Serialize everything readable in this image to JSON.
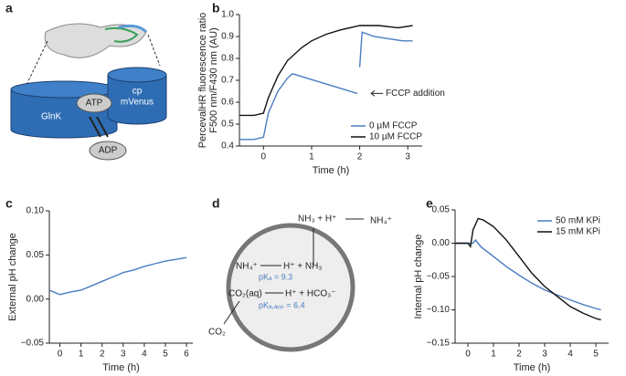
{
  "panel_labels": [
    "a",
    "b",
    "c",
    "d",
    "e"
  ],
  "diagram_a": {
    "glnk": "GlnK",
    "atp": "ATP",
    "cp": "cp",
    "mvenus": "mVenus",
    "adp": "ADP"
  },
  "diagram_d": {
    "top_left": "NH₃ + H⁺",
    "top_right": "NH₄⁺",
    "nh4": "NH₄⁺",
    "eq1": "H⁺ + NH₃",
    "pka1": "pKₐ = 9.3",
    "co2aq": "CO₂(aq)",
    "eq2": "H⁺ + HCO₃⁻",
    "pka2": "pKₐ,ₐₚₚ = 6.4",
    "co2": "CO₂"
  },
  "chart_data": [
    {
      "type": "line",
      "xlabel": "Time (h)",
      "ylabel": [
        "PercevalHR fluorescence ratio",
        "F500 nm/F430 nm (AU)"
      ],
      "annotation": "FCCP addition",
      "legend": "lower right",
      "xlim": [
        -0.5,
        3.3
      ],
      "xticks": [
        0,
        1,
        2,
        3
      ],
      "ylim": [
        0.4,
        1.0
      ],
      "yticks": [
        0.4,
        0.5,
        0.6,
        0.7,
        0.8,
        0.9,
        {
          "value": 1,
          "label": "1.0"
        }
      ],
      "series": [
        {
          "name": "0 µM FCCP",
          "color": "#4a7cc0",
          "x": [
            -0.5,
            -0.2,
            0,
            0.1,
            0.3,
            0.5,
            0.6,
            0.9,
            1.2,
            1.5,
            1.8,
            1.95,
            2.0,
            2.0,
            2.05,
            2.3,
            2.6,
            2.9,
            3.1
          ],
          "values": [
            0.43,
            0.43,
            0.44,
            0.55,
            0.65,
            0.71,
            0.73,
            0.71,
            0.69,
            0.67,
            0.65,
            0.64,
            null,
            0.76,
            0.92,
            0.9,
            0.89,
            0.88,
            0.88
          ]
        },
        {
          "name": "10 µM FCCP",
          "color": "#111111",
          "x": [
            -0.5,
            -0.2,
            0,
            0.1,
            0.3,
            0.5,
            0.8,
            1.0,
            1.3,
            1.6,
            2.0,
            2.4,
            2.8,
            3.1
          ],
          "values": [
            0.54,
            0.54,
            0.55,
            0.62,
            0.72,
            0.79,
            0.85,
            0.88,
            0.91,
            0.93,
            0.95,
            0.95,
            0.94,
            0.95
          ]
        }
      ]
    },
    {
      "type": "line",
      "xlabel": "Time (h)",
      "ylabel": "External pH change",
      "xlim": [
        -0.5,
        6.3
      ],
      "xticks": [
        0,
        1,
        2,
        3,
        4,
        5,
        6
      ],
      "ylim": [
        -0.05,
        0.1
      ],
      "yticks": [
        {
          "value": -0.05,
          "label": "−0.05"
        },
        {
          "value": 0,
          "label": "0.00"
        },
        0.05,
        {
          "value": 0.1,
          "label": "0.10"
        }
      ],
      "series": [
        {
          "color": "#4a7cc0",
          "x": [
            -0.5,
            0,
            0.5,
            1,
            1.5,
            2,
            2.5,
            3,
            3.5,
            4,
            4.5,
            5,
            5.5,
            6
          ],
          "values": [
            0.01,
            0.005,
            0.008,
            0.01,
            0.015,
            0.02,
            0.025,
            0.03,
            0.033,
            0.037,
            0.04,
            0.043,
            0.045,
            0.047
          ]
        }
      ]
    },
    {
      "type": "line",
      "xlabel": "Time (h)",
      "ylabel": "Internal pH change",
      "legend": "upper right",
      "xlim": [
        -0.5,
        5.5
      ],
      "xticks": [
        0,
        1,
        2,
        3,
        4,
        5
      ],
      "ylim": [
        -0.15,
        0.05
      ],
      "yticks": [
        0.05,
        {
          "value": 0,
          "label": "0.00"
        },
        {
          "value": -0.05,
          "label": "−0.05"
        },
        {
          "value": -0.1,
          "label": "−0.10"
        },
        {
          "value": -0.15,
          "label": "−0.15"
        }
      ],
      "series": [
        {
          "name": "50 mM KPi",
          "color": "#4a7cc0",
          "x": [
            -0.5,
            0,
            0.2,
            0.3,
            0.5,
            1,
            1.5,
            2,
            2.5,
            3,
            3.5,
            4,
            4.5,
            5,
            5.2
          ],
          "values": [
            0,
            0,
            0,
            0.005,
            -0.005,
            -0.02,
            -0.035,
            -0.048,
            -0.06,
            -0.07,
            -0.078,
            -0.085,
            -0.092,
            -0.098,
            -0.1
          ]
        },
        {
          "name": "15 mM KPi",
          "color": "#111111",
          "x": [
            -0.5,
            0,
            0.1,
            0.2,
            0.4,
            0.6,
            1,
            1.5,
            2,
            2.5,
            3,
            3.5,
            4,
            4.5,
            5,
            5.2
          ],
          "values": [
            0,
            0,
            -0.005,
            0.02,
            0.037,
            0.035,
            0.025,
            0.005,
            -0.02,
            -0.045,
            -0.065,
            -0.08,
            -0.095,
            -0.105,
            -0.113,
            -0.115
          ]
        }
      ]
    }
  ]
}
